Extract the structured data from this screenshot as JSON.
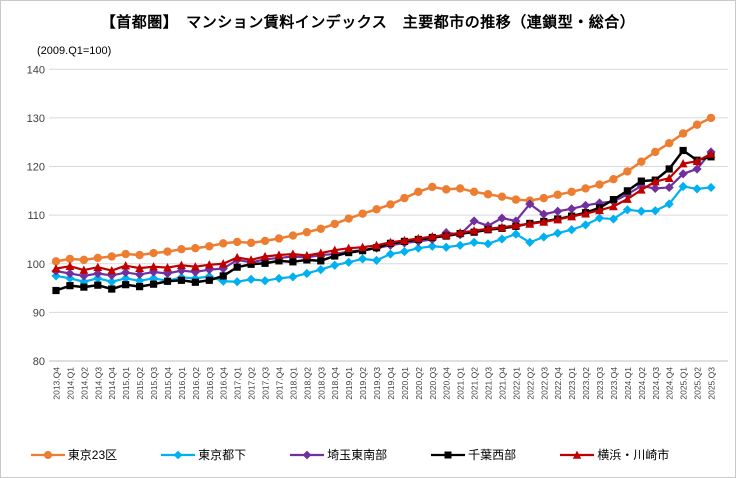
{
  "page": {
    "title": "【首都圏】　マンション賃料インデックス　主要都市の推移（連鎖型・総合）",
    "subtitle": "(2009.Q1=100)"
  },
  "chart_data": {
    "type": "line",
    "title": "【首都圏】　マンション賃料インデックス　主要都市の推移（連鎖型・総合）",
    "note": "(2009.Q1=100)",
    "xlabel": "",
    "ylabel": "",
    "ylim": [
      80,
      140
    ],
    "ytick_interval": 10,
    "grid": true,
    "legend_position": "bottom",
    "x_tick_rotation": -90,
    "colors": {
      "grid": "#d9d9d9",
      "axis": "#bfbfbf",
      "tick_label": "#404040",
      "title_text": "#000000"
    },
    "categories": [
      "2013.Q4",
      "2014.Q1",
      "2014.Q2",
      "2014.Q3",
      "2014.Q4",
      "2015.Q1",
      "2015.Q2",
      "2015.Q3",
      "2015.Q4",
      "2016.Q1",
      "2016.Q2",
      "2016.Q3",
      "2016.Q4",
      "2017.Q1",
      "2017.Q2",
      "2017.Q3",
      "2017.Q4",
      "2018.Q1",
      "2018.Q2",
      "2018.Q3",
      "2018.Q4",
      "2019.Q1",
      "2019.Q2",
      "2019.Q3",
      "2019.Q4",
      "2020.Q1",
      "2020.Q2",
      "2020.Q3",
      "2020.Q4",
      "2021.Q1",
      "2021.Q2",
      "2021.Q3",
      "2021.Q4",
      "2022.Q1",
      "2022.Q2",
      "2022.Q3",
      "2022.Q4",
      "2023.Q1",
      "2023.Q2",
      "2023.Q3",
      "2023.Q4",
      "2024.Q1",
      "2024.Q2",
      "2024.Q3",
      "2024.Q4",
      "2025.Q1",
      "2025.Q2",
      "2025.Q3"
    ],
    "series": [
      {
        "name": "東京23区",
        "color": "#ED7D31",
        "marker": "circle",
        "line_width": 2.5,
        "values": [
          100.5,
          101.0,
          100.8,
          101.2,
          101.5,
          102.0,
          101.8,
          102.2,
          102.5,
          103.0,
          103.2,
          103.6,
          104.2,
          104.5,
          104.3,
          104.7,
          105.2,
          105.8,
          106.5,
          107.2,
          108.2,
          109.3,
          110.3,
          111.2,
          112.2,
          113.5,
          114.8,
          115.8,
          115.3,
          115.5,
          114.8,
          114.3,
          113.8,
          113.2,
          113.0,
          113.5,
          114.2,
          114.8,
          115.5,
          116.3,
          117.4,
          119.0,
          121.0,
          123.0,
          124.8,
          126.8,
          128.6,
          130.0
        ]
      },
      {
        "name": "東京都下",
        "color": "#00B0F0",
        "marker": "diamond",
        "line_width": 2.2,
        "values": [
          97.5,
          97.0,
          96.3,
          97.0,
          96.3,
          97.0,
          96.5,
          97.0,
          96.5,
          97.2,
          97.0,
          97.4,
          96.4,
          96.3,
          96.8,
          96.5,
          97.0,
          97.3,
          98.0,
          98.8,
          99.7,
          100.3,
          101.0,
          100.7,
          102.0,
          102.5,
          103.2,
          103.6,
          103.4,
          103.8,
          104.4,
          104.1,
          105.1,
          106.1,
          104.4,
          105.5,
          106.3,
          107.0,
          108.0,
          109.4,
          109.2,
          111.1,
          110.8,
          110.9,
          112.3,
          115.9,
          115.4,
          115.7
        ]
      },
      {
        "name": "埼玉東南部",
        "color": "#7030A0",
        "marker": "diamond",
        "line_width": 2.2,
        "values": [
          98.5,
          98.0,
          97.5,
          98.0,
          97.6,
          98.2,
          97.8,
          98.3,
          98.0,
          98.6,
          98.3,
          98.8,
          99.0,
          100.8,
          100.3,
          100.9,
          101.2,
          101.5,
          101.3,
          101.8,
          102.0,
          102.5,
          102.8,
          103.2,
          103.8,
          104.3,
          104.6,
          105.0,
          106.4,
          106.0,
          108.8,
          107.8,
          109.4,
          108.8,
          112.3,
          110.2,
          110.8,
          111.3,
          112.0,
          112.5,
          112.8,
          114.3,
          116.0,
          115.5,
          115.7,
          118.5,
          119.5,
          123.0
        ]
      },
      {
        "name": "千葉西部",
        "color": "#000000",
        "marker": "square",
        "line_width": 2.5,
        "values": [
          94.5,
          95.5,
          95.2,
          95.6,
          94.8,
          95.7,
          95.3,
          95.8,
          96.4,
          96.6,
          96.2,
          96.6,
          97.5,
          99.3,
          99.9,
          100.1,
          100.6,
          100.4,
          100.8,
          100.6,
          101.6,
          102.3,
          102.7,
          103.3,
          104.2,
          104.6,
          105.0,
          105.4,
          105.7,
          106.2,
          106.5,
          107.0,
          107.3,
          107.7,
          108.3,
          108.7,
          109.2,
          109.8,
          110.5,
          111.5,
          113.2,
          115.0,
          117.0,
          117.2,
          119.5,
          123.3,
          121.3,
          122.0
        ]
      },
      {
        "name": "横浜・川崎市",
        "color": "#C00000",
        "marker": "triangle",
        "line_width": 2.2,
        "values": [
          99.0,
          99.5,
          98.7,
          99.3,
          98.6,
          99.6,
          99.1,
          99.4,
          99.2,
          99.7,
          99.4,
          99.8,
          100.0,
          101.3,
          100.8,
          101.5,
          101.8,
          102.0,
          101.7,
          102.2,
          102.8,
          103.2,
          103.4,
          103.8,
          104.4,
          104.8,
          105.2,
          105.6,
          105.9,
          106.4,
          106.8,
          107.2,
          107.5,
          107.9,
          108.2,
          108.6,
          109.1,
          109.7,
          110.3,
          111.0,
          111.8,
          113.3,
          115.2,
          116.9,
          117.6,
          120.6,
          121.1,
          122.6
        ]
      }
    ]
  }
}
